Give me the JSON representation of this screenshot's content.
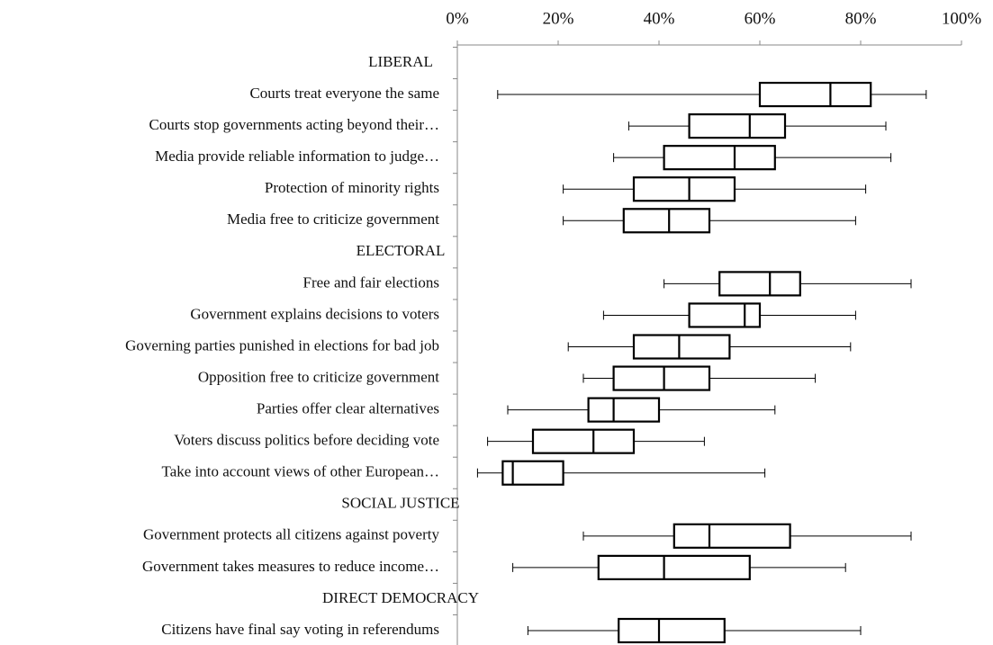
{
  "chart_data": {
    "type": "boxplot",
    "categories": [
      "LIBERAL",
      "Courts treat everyone the same",
      "Courts stop governments acting beyond their…",
      "Media provide reliable information to judge…",
      "Protection of minority rights",
      "Media free to criticize government",
      "ELECTORAL",
      "Free and fair elections",
      "Government explains decisions to voters",
      "Governing parties punished in elections for bad job",
      "Opposition free to criticize government",
      "Parties offer clear alternatives",
      "Voters discuss politics before deciding vote",
      "Take into account views of other European…",
      "SOCIAL JUSTICE",
      "Government protects all citizens against poverty",
      "Government takes measures to reduce income…",
      "DIRECT DEMOCRACY",
      "Citizens have final say voting in referendums"
    ],
    "min": [
      null,
      8,
      34,
      31,
      21,
      21,
      null,
      41,
      29,
      22,
      25,
      10,
      6,
      4,
      null,
      25,
      11,
      null,
      14
    ],
    "q1": [
      null,
      60,
      46,
      41,
      35,
      33,
      null,
      52,
      46,
      35,
      31,
      26,
      15,
      9,
      null,
      43,
      28,
      null,
      32
    ],
    "median": [
      null,
      74,
      58,
      55,
      46,
      42,
      null,
      62,
      57,
      44,
      41,
      31,
      27,
      11,
      null,
      50,
      41,
      null,
      40
    ],
    "q3": [
      null,
      82,
      65,
      63,
      55,
      50,
      null,
      68,
      60,
      54,
      50,
      40,
      35,
      21,
      null,
      66,
      58,
      null,
      53
    ],
    "max": [
      null,
      93,
      85,
      86,
      81,
      79,
      null,
      90,
      79,
      78,
      71,
      63,
      49,
      61,
      null,
      90,
      77,
      null,
      80
    ],
    "xlim": [
      0,
      100
    ],
    "xticks": [
      {
        "value": 0,
        "label": "0%"
      },
      {
        "value": 20,
        "label": "20%"
      },
      {
        "value": 40,
        "label": "40%"
      },
      {
        "value": 60,
        "label": "60%"
      },
      {
        "value": 80,
        "label": "80%"
      },
      {
        "value": 100,
        "label": "100%"
      }
    ],
    "color": "#000000"
  }
}
